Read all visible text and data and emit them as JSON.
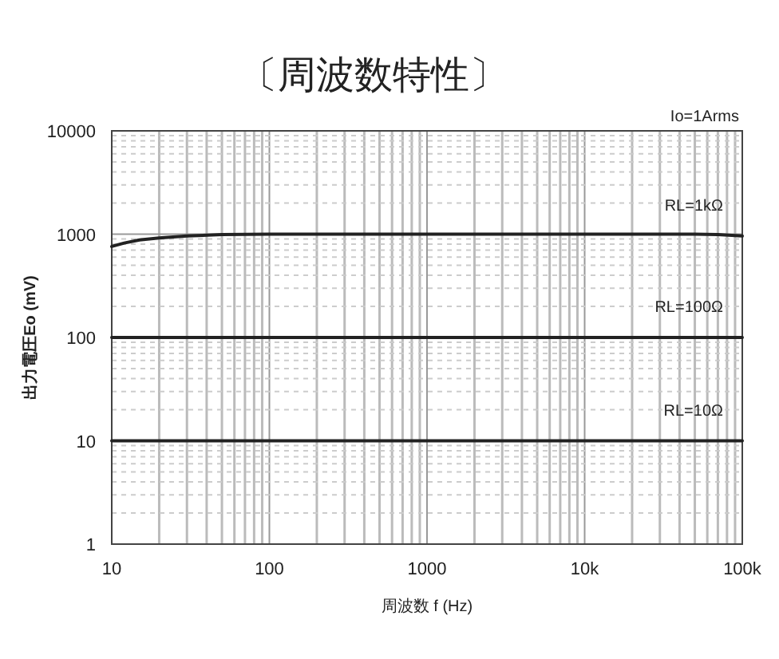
{
  "chart_data": {
    "type": "line",
    "title": "〔周波数特性〕",
    "xlabel": "周波数 f (Hz)",
    "ylabel": "出力電圧Eo (mV)",
    "log": "xy",
    "grid": true,
    "marker": "none",
    "line_style": "solid",
    "xlim": [
      10,
      100000
    ],
    "ylim": [
      1,
      10000
    ],
    "xticks": [
      10,
      100,
      1000,
      {
        "value": 10000,
        "label": "10k"
      },
      {
        "value": 100000,
        "label": "100k"
      }
    ],
    "yticks": [
      1,
      10,
      100,
      1000,
      10000
    ],
    "series": [
      {
        "name": "RL=1kΩ",
        "color": "#222222",
        "x": [
          10,
          12,
          15,
          20,
          30,
          50,
          100,
          1000,
          10000,
          50000,
          70000,
          100000
        ],
        "values": [
          760,
          820,
          880,
          920,
          960,
          990,
          1000,
          1000,
          1000,
          1000,
          990,
          960
        ]
      },
      {
        "name": "RL=100Ω",
        "color": "#222222",
        "x": [
          10,
          100000
        ],
        "values": [
          100,
          100
        ]
      },
      {
        "name": "RL=10Ω",
        "color": "#222222",
        "x": [
          10,
          100000
        ],
        "values": [
          10,
          10
        ]
      }
    ],
    "annotations": [
      "Io=1Arms"
    ]
  }
}
